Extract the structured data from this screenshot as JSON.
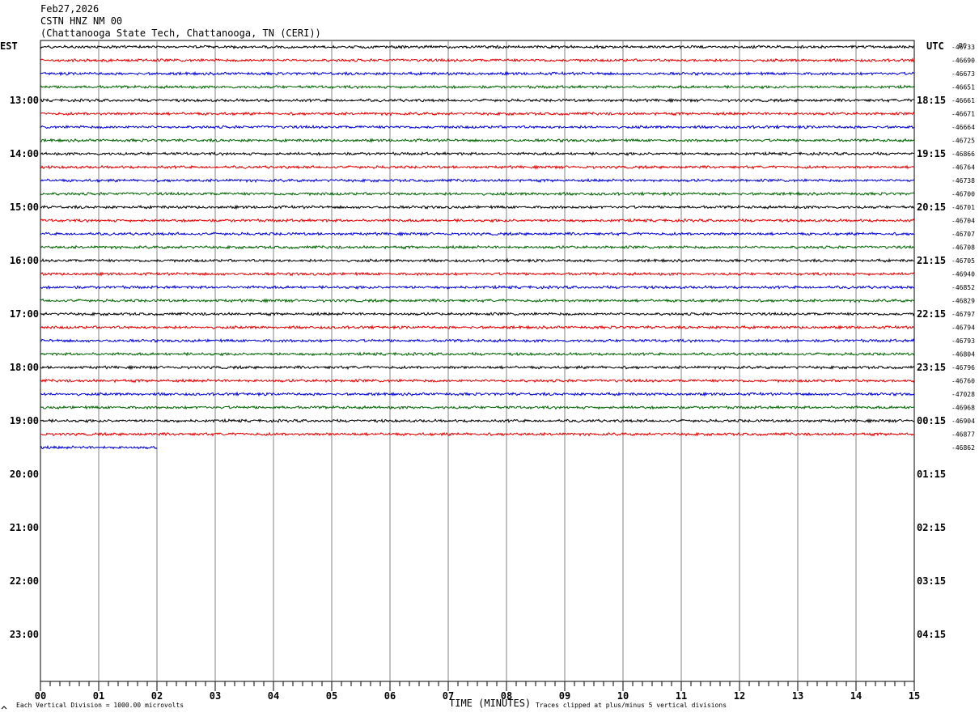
{
  "header": {
    "date": "Feb27,2026",
    "station": "CSTN HNZ NM 00",
    "location": "(Chattanooga State Tech, Chattanooga, TN (CERI))"
  },
  "chart_data": {
    "type": "line",
    "title": "Feb27,2026",
    "xlabel": "TIME (MINUTES)",
    "left_axis_label": "EST",
    "right_axis_label": "UTC",
    "dc_label": "DC",
    "x_ticks": [
      "00",
      "01",
      "02",
      "03",
      "04",
      "05",
      "06",
      "07",
      "08",
      "09",
      "10",
      "11",
      "12",
      "13",
      "14",
      "15"
    ],
    "xlim": [
      0,
      15
    ],
    "est_hour_labels": [
      "13:00",
      "14:00",
      "15:00",
      "16:00",
      "17:00",
      "18:00",
      "19:00",
      "20:00",
      "21:00",
      "22:00",
      "23:00"
    ],
    "utc_hour_labels": [
      "18:15",
      "19:15",
      "20:15",
      "21:15",
      "22:15",
      "23:15",
      "00:15",
      "01:15",
      "02:15",
      "03:15",
      "04:15"
    ],
    "rows_per_hour": 4,
    "trace_colors": [
      "#000000",
      "#e00000",
      "#0000d0",
      "#006400"
    ],
    "dc_offsets": [
      "-46733",
      "-46690",
      "-46673",
      "-46651",
      "-46661",
      "-46671",
      "-46664",
      "-46725",
      "-46866",
      "-46764",
      "-46738",
      "-46700",
      "-46701",
      "-46704",
      "-46707",
      "-46708",
      "-46705",
      "-46940",
      "-46852",
      "-46829",
      "-46797",
      "-46794",
      "-46793",
      "-46804",
      "-46796",
      "-46760",
      "-47028",
      "-46968",
      "-46904",
      "-46877",
      "-46862"
    ],
    "trace_end_minutes": [
      15,
      15,
      15,
      15,
      15,
      15,
      15,
      15,
      15,
      15,
      15,
      15,
      15,
      15,
      15,
      15,
      15,
      15,
      15,
      15,
      15,
      15,
      15,
      15,
      15,
      15,
      15,
      15,
      15,
      15,
      2
    ]
  },
  "footer": {
    "scale_note": "Each Vertical Division = 1000.00 microvolts",
    "clip_note": "Traces clipped at plus/minus 5 vertical divisions"
  }
}
